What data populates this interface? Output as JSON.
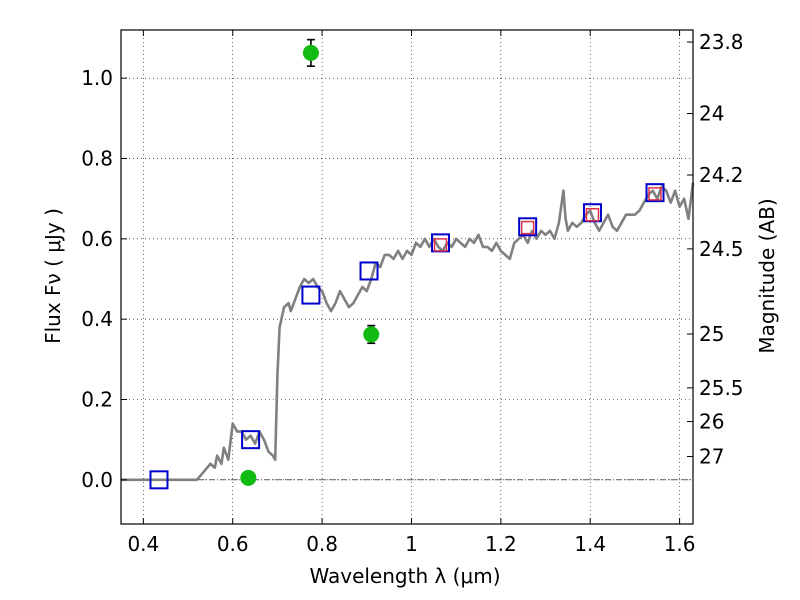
{
  "chart_data": {
    "type": "scatter",
    "xlabel": "Wavelength  λ (μm)",
    "ylabel": "Flux  Fν  ( μJy )",
    "y2label": "Magnitude (AB)",
    "xlim": [
      0.35,
      1.63
    ],
    "ylim": [
      -0.11,
      1.12
    ],
    "grid": true,
    "grid_style": "dotted",
    "x_ticks": [
      0.4,
      0.6,
      0.8,
      1.0,
      1.2,
      1.4,
      1.6
    ],
    "x_tick_labels": [
      "0.4",
      "0.6",
      "0.8",
      "1",
      "1.2",
      "1.4",
      "1.6"
    ],
    "y_ticks": [
      0.0,
      0.2,
      0.4,
      0.6,
      0.8,
      1.0
    ],
    "y_tick_labels": [
      "0.0",
      "0.2",
      "0.4",
      "0.6",
      "0.8",
      "1.0"
    ],
    "magnitude_ticks": [
      {
        "label": "23.8",
        "flux": 1.09
      },
      {
        "label": "24",
        "flux": 0.912
      },
      {
        "label": "24.2",
        "flux": 0.759
      },
      {
        "label": "24.5",
        "flux": 0.575
      },
      {
        "label": "25",
        "flux": 0.363
      },
      {
        "label": "25.5",
        "flux": 0.229
      },
      {
        "label": "26",
        "flux": 0.145
      },
      {
        "label": "27",
        "flux": 0.058
      }
    ],
    "series": [
      {
        "kind": "line",
        "color": "#808080",
        "x": [
          0.35,
          0.52,
          0.55,
          0.56,
          0.565,
          0.57,
          0.575,
          0.58,
          0.59,
          0.6,
          0.605,
          0.61,
          0.62,
          0.63,
          0.64,
          0.65,
          0.66,
          0.67,
          0.68,
          0.69,
          0.695,
          0.7,
          0.705,
          0.715,
          0.725,
          0.73,
          0.74,
          0.75,
          0.76,
          0.77,
          0.78,
          0.79,
          0.8,
          0.81,
          0.82,
          0.83,
          0.84,
          0.85,
          0.86,
          0.87,
          0.88,
          0.89,
          0.9,
          0.91,
          0.92,
          0.93,
          0.94,
          0.95,
          0.96,
          0.97,
          0.98,
          0.99,
          1.0,
          1.01,
          1.02,
          1.03,
          1.04,
          1.05,
          1.06,
          1.07,
          1.08,
          1.09,
          1.1,
          1.11,
          1.12,
          1.13,
          1.14,
          1.15,
          1.16,
          1.17,
          1.18,
          1.19,
          1.2,
          1.21,
          1.22,
          1.23,
          1.24,
          1.25,
          1.26,
          1.27,
          1.28,
          1.29,
          1.3,
          1.31,
          1.32,
          1.33,
          1.34,
          1.345,
          1.35,
          1.36,
          1.37,
          1.38,
          1.39,
          1.4,
          1.41,
          1.42,
          1.43,
          1.44,
          1.45,
          1.46,
          1.47,
          1.48,
          1.49,
          1.5,
          1.51,
          1.52,
          1.53,
          1.54,
          1.55,
          1.56,
          1.57,
          1.58,
          1.59,
          1.6,
          1.61,
          1.62,
          1.63
        ],
        "y": [
          0.0,
          0.0,
          0.04,
          0.03,
          0.06,
          0.05,
          0.04,
          0.08,
          0.05,
          0.14,
          0.13,
          0.12,
          0.12,
          0.1,
          0.11,
          0.09,
          0.12,
          0.1,
          0.07,
          0.06,
          0.05,
          0.26,
          0.38,
          0.43,
          0.44,
          0.42,
          0.45,
          0.48,
          0.5,
          0.49,
          0.5,
          0.48,
          0.47,
          0.44,
          0.42,
          0.44,
          0.47,
          0.45,
          0.43,
          0.44,
          0.46,
          0.48,
          0.47,
          0.5,
          0.54,
          0.53,
          0.56,
          0.56,
          0.55,
          0.57,
          0.55,
          0.57,
          0.56,
          0.59,
          0.58,
          0.6,
          0.58,
          0.6,
          0.58,
          0.57,
          0.59,
          0.58,
          0.6,
          0.59,
          0.58,
          0.6,
          0.59,
          0.61,
          0.58,
          0.58,
          0.57,
          0.59,
          0.57,
          0.56,
          0.55,
          0.59,
          0.6,
          0.61,
          0.59,
          0.62,
          0.6,
          0.62,
          0.61,
          0.62,
          0.6,
          0.64,
          0.72,
          0.65,
          0.62,
          0.64,
          0.63,
          0.64,
          0.66,
          0.67,
          0.64,
          0.62,
          0.64,
          0.66,
          0.63,
          0.62,
          0.64,
          0.66,
          0.66,
          0.66,
          0.67,
          0.69,
          0.71,
          0.72,
          0.7,
          0.73,
          0.72,
          0.69,
          0.72,
          0.68,
          0.7,
          0.65,
          0.74
        ]
      },
      {
        "kind": "open-square",
        "color": "#0000cc",
        "x": [
          0.435,
          0.64,
          0.775,
          0.905,
          1.065,
          1.26,
          1.405,
          1.545
        ],
        "y": [
          0.0,
          0.1,
          0.46,
          0.52,
          0.59,
          0.63,
          0.665,
          0.715
        ]
      },
      {
        "kind": "open-square",
        "color": "#e0304a",
        "x": [
          1.065,
          1.26,
          1.405,
          1.545
        ],
        "y": [
          0.585,
          0.628,
          0.66,
          0.712
        ]
      },
      {
        "kind": "filled-circle",
        "color": "#11bb11",
        "x": [
          0.635,
          0.775,
          0.91
        ],
        "y": [
          0.005,
          1.063,
          0.362
        ],
        "yerr": [
          0.012,
          0.033,
          0.022
        ]
      }
    ]
  }
}
